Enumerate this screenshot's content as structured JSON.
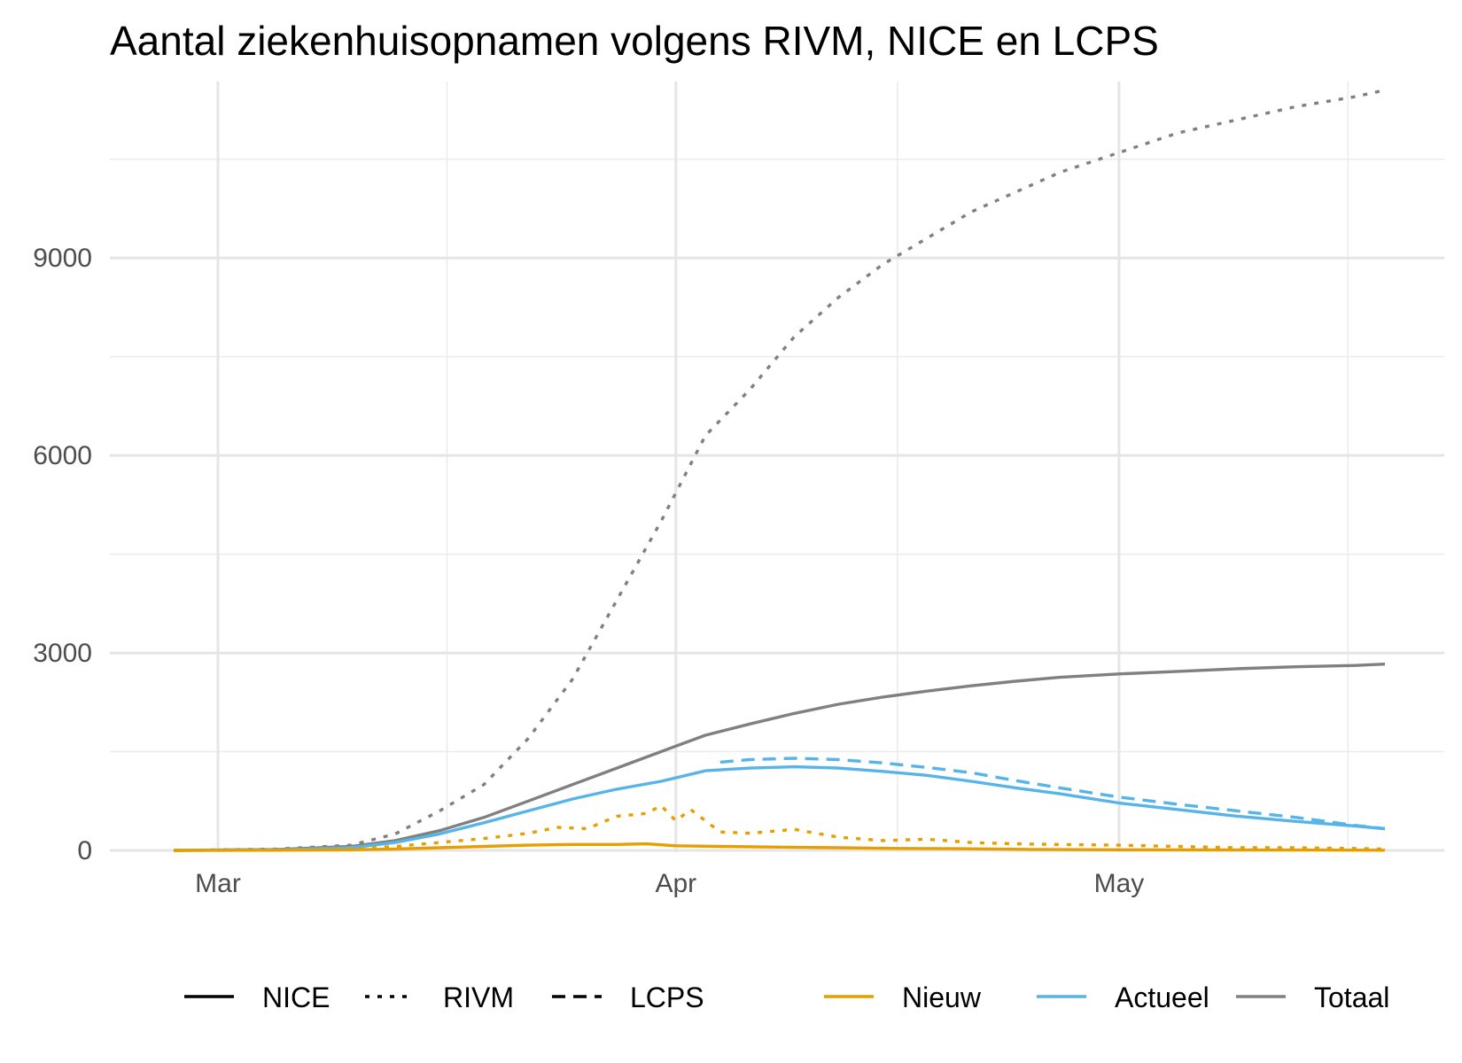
{
  "chart_data": {
    "type": "line",
    "title": "Aantal ziekenhuisopnamen volgens RIVM, NICE en LCPS",
    "xlabel": "",
    "ylabel": "",
    "x_start": "2020-02-27",
    "x_range": [
      "2020-02-27",
      "2020-05-19"
    ],
    "ylim": [
      0,
      11600
    ],
    "y_ticks": [
      0,
      3000,
      6000,
      9000
    ],
    "x_ticks": [
      {
        "label": "Mar",
        "date": "2020-03-01"
      },
      {
        "label": "Apr",
        "date": "2020-04-01"
      },
      {
        "label": "May",
        "date": "2020-05-01"
      }
    ],
    "grid": true,
    "legend_position": "bottom",
    "legend": {
      "linetypes": [
        {
          "label": "NICE",
          "style": "solid"
        },
        {
          "label": "RIVM",
          "style": "dotted"
        },
        {
          "label": "LCPS",
          "style": "dashed"
        }
      ],
      "colors": [
        {
          "label": "Nieuw",
          "color": "#e69f00"
        },
        {
          "label": "Actueel",
          "color": "#56b4e9"
        },
        {
          "label": "Totaal",
          "color": "#808080"
        }
      ]
    },
    "series": [
      {
        "source": "RIVM",
        "measure": "Totaal",
        "color": "#808080",
        "style": "dotted",
        "x": [
          "2020-02-27",
          "2020-03-05",
          "2020-03-10",
          "2020-03-13",
          "2020-03-16",
          "2020-03-19",
          "2020-03-22",
          "2020-03-25",
          "2020-03-28",
          "2020-03-31",
          "2020-04-03",
          "2020-04-06",
          "2020-04-09",
          "2020-04-12",
          "2020-04-15",
          "2020-04-18",
          "2020-04-21",
          "2020-04-24",
          "2020-04-27",
          "2020-05-01",
          "2020-05-05",
          "2020-05-09",
          "2020-05-13",
          "2020-05-17",
          "2020-05-19"
        ],
        "y": [
          0,
          20,
          80,
          250,
          600,
          1000,
          1700,
          2600,
          3800,
          5000,
          6300,
          7000,
          7800,
          8400,
          8900,
          9300,
          9700,
          10000,
          10300,
          10600,
          10900,
          11100,
          11300,
          11450,
          11550
        ]
      },
      {
        "source": "NICE",
        "measure": "Totaal",
        "color": "#808080",
        "style": "solid",
        "x": [
          "2020-02-27",
          "2020-03-05",
          "2020-03-10",
          "2020-03-13",
          "2020-03-16",
          "2020-03-19",
          "2020-03-22",
          "2020-03-25",
          "2020-03-28",
          "2020-03-31",
          "2020-04-03",
          "2020-04-06",
          "2020-04-09",
          "2020-04-12",
          "2020-04-15",
          "2020-04-18",
          "2020-04-21",
          "2020-04-24",
          "2020-04-27",
          "2020-05-01",
          "2020-05-05",
          "2020-05-09",
          "2020-05-13",
          "2020-05-17",
          "2020-05-19"
        ],
        "y": [
          0,
          15,
          60,
          150,
          300,
          500,
          750,
          1000,
          1250,
          1500,
          1750,
          1920,
          2080,
          2220,
          2330,
          2420,
          2500,
          2570,
          2630,
          2680,
          2720,
          2760,
          2790,
          2810,
          2830
        ]
      },
      {
        "source": "NICE",
        "measure": "Actueel",
        "color": "#56b4e9",
        "style": "solid",
        "x": [
          "2020-02-27",
          "2020-03-05",
          "2020-03-10",
          "2020-03-13",
          "2020-03-16",
          "2020-03-19",
          "2020-03-22",
          "2020-03-25",
          "2020-03-28",
          "2020-03-31",
          "2020-04-03",
          "2020-04-06",
          "2020-04-09",
          "2020-04-12",
          "2020-04-15",
          "2020-04-18",
          "2020-04-21",
          "2020-04-24",
          "2020-04-27",
          "2020-05-01",
          "2020-05-05",
          "2020-05-09",
          "2020-05-13",
          "2020-05-17",
          "2020-05-19"
        ],
        "y": [
          0,
          10,
          40,
          120,
          250,
          420,
          600,
          780,
          930,
          1050,
          1210,
          1250,
          1270,
          1250,
          1200,
          1140,
          1050,
          950,
          860,
          720,
          620,
          520,
          440,
          370,
          330
        ]
      },
      {
        "source": "LCPS",
        "measure": "Actueel",
        "color": "#56b4e9",
        "style": "dashed",
        "x": [
          "2020-04-04",
          "2020-04-06",
          "2020-04-09",
          "2020-04-12",
          "2020-04-15",
          "2020-04-18",
          "2020-04-21",
          "2020-04-24",
          "2020-04-27",
          "2020-05-01",
          "2020-05-05",
          "2020-05-09",
          "2020-05-13",
          "2020-05-17",
          "2020-05-19"
        ],
        "y": [
          1340,
          1380,
          1400,
          1380,
          1330,
          1260,
          1180,
          1060,
          950,
          810,
          700,
          600,
          500,
          380,
          330
        ]
      },
      {
        "source": "RIVM",
        "measure": "Nieuw",
        "color": "#e69f00",
        "style": "dotted",
        "x": [
          "2020-02-27",
          "2020-03-05",
          "2020-03-10",
          "2020-03-13",
          "2020-03-16",
          "2020-03-19",
          "2020-03-22",
          "2020-03-24",
          "2020-03-26",
          "2020-03-28",
          "2020-03-30",
          "2020-03-31",
          "2020-04-01",
          "2020-04-02",
          "2020-04-04",
          "2020-04-06",
          "2020-04-09",
          "2020-04-12",
          "2020-04-15",
          "2020-04-18",
          "2020-04-21",
          "2020-04-24",
          "2020-04-27",
          "2020-05-01",
          "2020-05-05",
          "2020-05-09",
          "2020-05-13",
          "2020-05-17",
          "2020-05-19"
        ],
        "y": [
          0,
          5,
          20,
          60,
          120,
          180,
          260,
          350,
          330,
          520,
          560,
          680,
          450,
          620,
          280,
          260,
          320,
          200,
          150,
          170,
          120,
          100,
          90,
          80,
          60,
          40,
          40,
          30,
          20
        ]
      },
      {
        "source": "NICE",
        "measure": "Nieuw",
        "color": "#e69f00",
        "style": "solid",
        "x": [
          "2020-02-27",
          "2020-03-05",
          "2020-03-10",
          "2020-03-13",
          "2020-03-16",
          "2020-03-19",
          "2020-03-22",
          "2020-03-25",
          "2020-03-28",
          "2020-03-30",
          "2020-04-01",
          "2020-04-04",
          "2020-04-08",
          "2020-04-12",
          "2020-04-16",
          "2020-04-20",
          "2020-04-25",
          "2020-05-01",
          "2020-05-08",
          "2020-05-15",
          "2020-05-19"
        ],
        "y": [
          0,
          3,
          10,
          20,
          40,
          60,
          80,
          90,
          90,
          100,
          70,
          60,
          50,
          40,
          30,
          25,
          15,
          10,
          8,
          5,
          3
        ]
      }
    ]
  }
}
